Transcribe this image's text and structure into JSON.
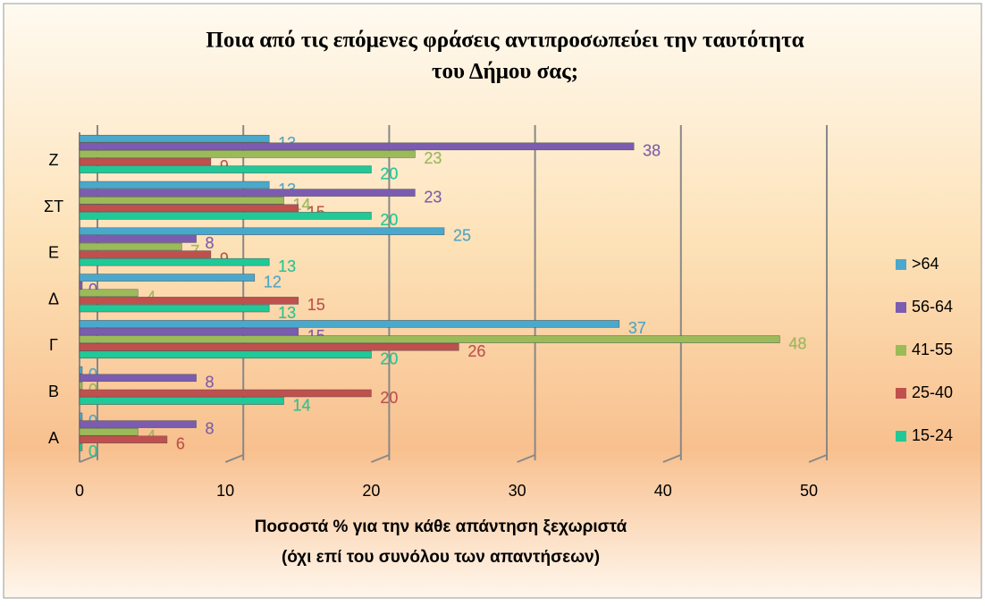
{
  "chart_data": {
    "type": "bar",
    "orientation": "horizontal",
    "title": [
      "Ποια από τις επόμενες φράσεις αντιπροσωπεύει την ταυτότητα",
      "του Δήμου σας;"
    ],
    "x_label": [
      "Ποσοστά % για την κάθε απάντηση ξεχωριστά",
      "(όχι επί του συνόλου των απαντήσεων)"
    ],
    "categories": [
      "Α",
      "Β",
      "Γ",
      "Δ",
      "Ε",
      "ΣΤ",
      "Ζ"
    ],
    "series": [
      {
        "name": ">64",
        "color": "#4aa8cc",
        "values": [
          0,
          0,
          37,
          12,
          25,
          13,
          13
        ]
      },
      {
        "name": "56-64",
        "color": "#7b5cb0",
        "values": [
          8,
          8,
          15,
          0,
          8,
          23,
          38
        ]
      },
      {
        "name": "41-55",
        "color": "#9bbb59",
        "values": [
          4,
          0,
          48,
          4,
          7,
          14,
          23
        ]
      },
      {
        "name": "25-40",
        "color": "#c0504d",
        "values": [
          6,
          20,
          26,
          15,
          9,
          15,
          9
        ]
      },
      {
        "name": "15-24",
        "color": "#20c997",
        "values": [
          0,
          14,
          20,
          13,
          13,
          20,
          20
        ]
      }
    ],
    "xlim": [
      0,
      50
    ],
    "xticks": [
      0,
      10,
      20,
      30,
      40,
      50
    ],
    "grid": true,
    "legend": "right"
  }
}
